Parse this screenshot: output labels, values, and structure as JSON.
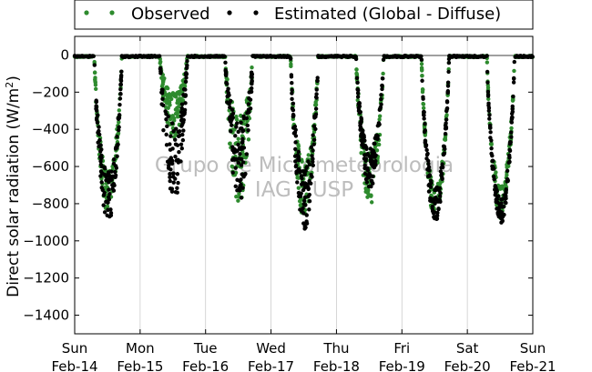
{
  "chart_data": {
    "type": "scatter",
    "ylabel_main": "Direct solar radiation (W/m",
    "ylabel_sup": "2",
    "ylabel_close": ")",
    "ylim": [
      -1500,
      100
    ],
    "yticks": [
      0,
      -200,
      -400,
      -600,
      -800,
      -1000,
      -1200,
      -1400
    ],
    "ytick_labels": [
      "0",
      "−200",
      "−400",
      "−600",
      "−800",
      "−1000",
      "−1200",
      "−1400"
    ],
    "xlim": [
      0,
      7
    ],
    "xticks": [
      {
        "day": "Sun",
        "date": "Feb-14"
      },
      {
        "day": "Mon",
        "date": "Feb-15"
      },
      {
        "day": "Tue",
        "date": "Feb-16"
      },
      {
        "day": "Wed",
        "date": "Feb-17"
      },
      {
        "day": "Thu",
        "date": "Feb-18"
      },
      {
        "day": "Fri",
        "date": "Feb-19"
      },
      {
        "day": "Sat",
        "date": "Feb-20"
      },
      {
        "day": "Sun",
        "date": "Feb-21"
      }
    ],
    "grid": "vertical",
    "legend_placement": "top",
    "watermark": [
      "Grupo de Micrometeorologia",
      "IAG - USP"
    ],
    "series": [
      {
        "name": "Observed",
        "color": "#2e8b2e",
        "days": [
          {
            "day": 0,
            "peak": -850,
            "scatter": 0.28
          },
          {
            "day": 1,
            "peak": -450,
            "scatter": 0.55
          },
          {
            "day": 2,
            "peak": -800,
            "scatter": 0.6
          },
          {
            "day": 3,
            "peak": -880,
            "scatter": 0.35
          },
          {
            "day": 4,
            "peak": -810,
            "scatter": 0.35
          },
          {
            "day": 5,
            "peak": -890,
            "scatter": 0.2
          },
          {
            "day": 6,
            "peak": -880,
            "scatter": 0.2
          }
        ]
      },
      {
        "name": "Estimated (Global - Diffuse)",
        "color": "#000000",
        "days": [
          {
            "day": 0,
            "peak": -900,
            "scatter": 0.3
          },
          {
            "day": 1,
            "peak": -800,
            "scatter": 0.55
          },
          {
            "day": 2,
            "peak": -790,
            "scatter": 0.55
          },
          {
            "day": 3,
            "peak": -940,
            "scatter": 0.35
          },
          {
            "day": 4,
            "peak": -720,
            "scatter": 0.3
          },
          {
            "day": 5,
            "peak": -900,
            "scatter": 0.2
          },
          {
            "day": 6,
            "peak": -910,
            "scatter": 0.15
          }
        ]
      }
    ]
  }
}
